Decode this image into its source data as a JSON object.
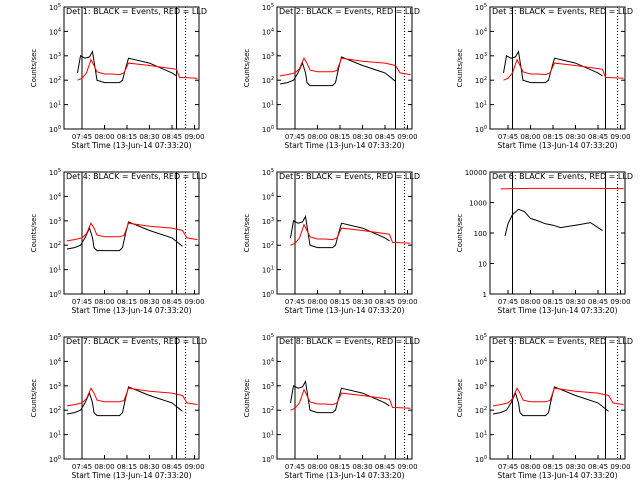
{
  "figure": {
    "x_title_common": "Start Time (13-Jun-14 07:33:20)",
    "y_title_common": "Counts/sec"
  },
  "chart_data": [
    {
      "type": "line",
      "title": "Det 1: BLACK = Events, RED = LLD",
      "xlabel": "Start Time (13-Jun-14 07:33:20)",
      "ylabel": "Counts/sec",
      "yscale": "log",
      "xlim": [
        "07:33",
        "09:03"
      ],
      "ylim": [
        1,
        100000
      ],
      "x_ticks": [
        "07:45",
        "08:00",
        "08:15",
        "08:30",
        "08:45",
        "09:00"
      ],
      "y_ticks": [
        "10^0",
        "10^1",
        "10^2",
        "10^3",
        "10^4",
        "10^5"
      ],
      "vlines_solid": [
        "07:45",
        "08:48"
      ],
      "vlines_dotted": [
        "08:54"
      ],
      "series": [
        {
          "color": "#000000",
          "x": [
            "07:42",
            "07:44",
            "07:47",
            "07:50",
            "07:52",
            "07:53",
            "07:55",
            "08:00",
            "08:05",
            "08:10",
            "08:12",
            "08:14",
            "08:16",
            "08:30",
            "08:45",
            "08:48"
          ],
          "y": [
            200,
            1000,
            800,
            900,
            1500,
            600,
            100,
            80,
            80,
            80,
            100,
            300,
            800,
            500,
            200,
            150
          ]
        },
        {
          "color": "#ff0000",
          "x": [
            "07:42",
            "07:45",
            "07:48",
            "07:51",
            "07:53",
            "07:55",
            "08:00",
            "08:05",
            "08:10",
            "08:13",
            "08:16",
            "08:30",
            "08:45",
            "08:48",
            "08:50",
            "09:02"
          ],
          "y": [
            100,
            120,
            200,
            700,
            400,
            220,
            180,
            180,
            170,
            200,
            500,
            400,
            300,
            280,
            130,
            120
          ]
        }
      ]
    },
    {
      "type": "line",
      "title": "Det 2: BLACK = Events, RED = LLD",
      "xlabel": "Start Time (13-Jun-14 07:33:20)",
      "ylabel": "Counts/sec",
      "yscale": "log",
      "xlim": [
        "07:33",
        "09:03"
      ],
      "ylim": [
        1,
        100000
      ],
      "x_ticks": [
        "07:45",
        "08:00",
        "08:15",
        "08:30",
        "08:45",
        "09:00"
      ],
      "y_ticks": [
        "10^0",
        "10^1",
        "10^2",
        "10^3",
        "10^4",
        "10^5"
      ],
      "vlines_solid": [
        "07:45",
        "08:52"
      ],
      "vlines_dotted": [
        "08:58"
      ],
      "series": [
        {
          "color": "#000000",
          "x": [
            "07:35",
            "07:40",
            "07:44",
            "07:47",
            "07:50",
            "07:52",
            "07:53",
            "07:55",
            "08:00",
            "08:05",
            "08:10",
            "08:12",
            "08:14",
            "08:16",
            "08:30",
            "08:45",
            "08:52"
          ],
          "y": [
            70,
            80,
            100,
            200,
            500,
            200,
            80,
            60,
            60,
            60,
            60,
            80,
            300,
            900,
            400,
            200,
            90
          ]
        },
        {
          "color": "#ff0000",
          "x": [
            "07:35",
            "07:40",
            "07:45",
            "07:48",
            "07:51",
            "07:53",
            "07:55",
            "08:00",
            "08:05",
            "08:10",
            "08:13",
            "08:16",
            "08:30",
            "08:45",
            "08:52",
            "08:55",
            "09:02"
          ],
          "y": [
            150,
            170,
            200,
            300,
            800,
            500,
            260,
            220,
            220,
            220,
            250,
            800,
            600,
            500,
            400,
            200,
            170
          ]
        }
      ]
    },
    {
      "type": "line",
      "title": "Det 3: BLACK = Events, RED = LLD",
      "xlabel": "Start Time (13-Jun-14 07:33:20)",
      "ylabel": "Counts/sec",
      "yscale": "log",
      "xlim": [
        "07:33",
        "09:03"
      ],
      "ylim": [
        1,
        100000
      ],
      "x_ticks": [
        "07:45",
        "08:00",
        "08:15",
        "08:30",
        "08:45",
        "09:00"
      ],
      "y_ticks": [
        "10^0",
        "10^1",
        "10^2",
        "10^3",
        "10^4",
        "10^5"
      ],
      "vlines_solid": [
        "07:48",
        "08:50"
      ],
      "vlines_dotted": [
        "08:58"
      ],
      "series": [
        {
          "color": "#000000",
          "x": [
            "07:42",
            "07:44",
            "07:47",
            "07:50",
            "07:52",
            "07:53",
            "07:55",
            "08:00",
            "08:05",
            "08:10",
            "08:12",
            "08:14",
            "08:16",
            "08:30",
            "08:45",
            "08:48"
          ],
          "y": [
            200,
            1000,
            800,
            900,
            1500,
            600,
            100,
            80,
            80,
            80,
            100,
            300,
            800,
            500,
            200,
            150
          ]
        },
        {
          "color": "#ff0000",
          "x": [
            "07:42",
            "07:45",
            "07:48",
            "07:51",
            "07:53",
            "07:55",
            "08:00",
            "08:05",
            "08:10",
            "08:13",
            "08:16",
            "08:30",
            "08:45",
            "08:48",
            "08:50",
            "09:02"
          ],
          "y": [
            100,
            120,
            200,
            700,
            400,
            220,
            180,
            180,
            170,
            200,
            500,
            400,
            300,
            280,
            130,
            120
          ]
        }
      ]
    },
    {
      "type": "line",
      "title": "Det 4: BLACK = Events, RED = LLD",
      "xlabel": "Start Time (13-Jun-14 07:33:20)",
      "ylabel": "Counts/sec",
      "yscale": "log",
      "xlim": [
        "07:33",
        "09:03"
      ],
      "ylim": [
        1,
        100000
      ],
      "x_ticks": [
        "07:45",
        "08:00",
        "08:15",
        "08:30",
        "08:45",
        "09:00"
      ],
      "y_ticks": [
        "10^0",
        "10^1",
        "10^2",
        "10^3",
        "10^4",
        "10^5"
      ],
      "vlines_solid": [
        "07:45",
        "08:48"
      ],
      "vlines_dotted": [
        "08:54"
      ],
      "series": [
        {
          "color": "#000000",
          "x": [
            "07:35",
            "07:40",
            "07:44",
            "07:47",
            "07:50",
            "07:52",
            "07:53",
            "07:55",
            "08:00",
            "08:05",
            "08:10",
            "08:12",
            "08:14",
            "08:16",
            "08:30",
            "08:45",
            "08:52"
          ],
          "y": [
            70,
            80,
            100,
            200,
            500,
            200,
            80,
            60,
            60,
            60,
            60,
            80,
            300,
            900,
            400,
            200,
            90
          ]
        },
        {
          "color": "#ff0000",
          "x": [
            "07:35",
            "07:40",
            "07:45",
            "07:48",
            "07:51",
            "07:53",
            "07:55",
            "08:00",
            "08:05",
            "08:10",
            "08:13",
            "08:16",
            "08:30",
            "08:45",
            "08:52",
            "08:55",
            "09:02"
          ],
          "y": [
            150,
            170,
            200,
            300,
            800,
            500,
            260,
            220,
            220,
            220,
            250,
            800,
            600,
            500,
            400,
            200,
            170
          ]
        }
      ]
    },
    {
      "type": "line",
      "title": "Det 5: BLACK = Events, RED = LLD",
      "xlabel": "Start Time (13-Jun-14 07:33:20)",
      "ylabel": "Counts/sec",
      "yscale": "log",
      "xlim": [
        "07:33",
        "09:03"
      ],
      "ylim": [
        1,
        100000
      ],
      "x_ticks": [
        "07:45",
        "08:00",
        "08:15",
        "08:30",
        "08:45",
        "09:00"
      ],
      "y_ticks": [
        "10^0",
        "10^1",
        "10^2",
        "10^3",
        "10^4",
        "10^5"
      ],
      "vlines_solid": [
        "07:45",
        "08:52"
      ],
      "vlines_dotted": [
        "08:58"
      ],
      "series": [
        {
          "color": "#000000",
          "x": [
            "07:42",
            "07:44",
            "07:47",
            "07:50",
            "07:52",
            "07:53",
            "07:55",
            "08:00",
            "08:05",
            "08:10",
            "08:12",
            "08:14",
            "08:16",
            "08:30",
            "08:45",
            "08:48"
          ],
          "y": [
            200,
            1000,
            800,
            900,
            1500,
            600,
            100,
            80,
            80,
            80,
            100,
            300,
            800,
            500,
            200,
            150
          ]
        },
        {
          "color": "#ff0000",
          "x": [
            "07:42",
            "07:45",
            "07:48",
            "07:51",
            "07:53",
            "07:55",
            "08:00",
            "08:05",
            "08:10",
            "08:13",
            "08:16",
            "08:30",
            "08:45",
            "08:48",
            "08:50",
            "09:02"
          ],
          "y": [
            100,
            120,
            200,
            700,
            400,
            220,
            180,
            180,
            170,
            200,
            500,
            400,
            300,
            280,
            130,
            120
          ]
        }
      ]
    },
    {
      "type": "line",
      "title": "Det 6: BLACK = Events, RED = LLD",
      "xlabel": "Start Time (13-Jun-14 07:33:20)",
      "ylabel": "Counts/sec",
      "yscale": "log",
      "xlim": [
        "07:33",
        "09:03"
      ],
      "ylim": [
        1,
        10000
      ],
      "x_ticks": [
        "07:45",
        "08:00",
        "08:15",
        "08:30",
        "08:45",
        "09:00"
      ],
      "y_ticks": [
        "1",
        "10",
        "100",
        "1000",
        "10000"
      ],
      "vlines_solid": [
        "07:48",
        "08:50"
      ],
      "vlines_dotted": [
        "08:58"
      ],
      "series": [
        {
          "color": "#000000",
          "x": [
            "07:43",
            "07:45",
            "07:48",
            "07:52",
            "07:56",
            "08:00",
            "08:05",
            "08:10",
            "08:15",
            "08:20",
            "08:30",
            "08:40",
            "08:48"
          ],
          "y": [
            80,
            200,
            400,
            600,
            500,
            300,
            250,
            200,
            180,
            150,
            180,
            220,
            120
          ]
        },
        {
          "color": "#ff0000",
          "x": [
            "07:40",
            "08:00",
            "08:20",
            "08:40",
            "09:02"
          ],
          "y": [
            2800,
            2900,
            2900,
            2900,
            2850
          ]
        }
      ]
    },
    {
      "type": "line",
      "title": "Det 7: BLACK = Events, RED = LLD",
      "xlabel": "Start Time (13-Jun-14 07:33:20)",
      "ylabel": "Counts/sec",
      "yscale": "log",
      "xlim": [
        "07:33",
        "09:03"
      ],
      "ylim": [
        1,
        100000
      ],
      "x_ticks": [
        "07:45",
        "08:00",
        "08:15",
        "08:30",
        "08:45",
        "09:00"
      ],
      "y_ticks": [
        "10^0",
        "10^1",
        "10^2",
        "10^3",
        "10^4",
        "10^5"
      ],
      "vlines_solid": [
        "07:45",
        "08:48"
      ],
      "vlines_dotted": [
        "08:54"
      ],
      "series": [
        {
          "color": "#000000",
          "x": [
            "07:35",
            "07:40",
            "07:44",
            "07:47",
            "07:50",
            "07:52",
            "07:53",
            "07:55",
            "08:00",
            "08:05",
            "08:10",
            "08:12",
            "08:14",
            "08:16",
            "08:30",
            "08:45",
            "08:52"
          ],
          "y": [
            70,
            80,
            100,
            200,
            500,
            200,
            80,
            60,
            60,
            60,
            60,
            80,
            300,
            900,
            400,
            200,
            90
          ]
        },
        {
          "color": "#ff0000",
          "x": [
            "07:35",
            "07:40",
            "07:45",
            "07:48",
            "07:51",
            "07:53",
            "07:55",
            "08:00",
            "08:05",
            "08:10",
            "08:13",
            "08:16",
            "08:30",
            "08:45",
            "08:52",
            "08:55",
            "09:02"
          ],
          "y": [
            150,
            170,
            200,
            300,
            800,
            500,
            260,
            220,
            220,
            220,
            250,
            800,
            600,
            500,
            400,
            200,
            170
          ]
        }
      ]
    },
    {
      "type": "line",
      "title": "Det 8: BLACK = Events, RED = LLD",
      "xlabel": "Start Time (13-Jun-14 07:33:20)",
      "ylabel": "Counts/sec",
      "yscale": "log",
      "xlim": [
        "07:33",
        "09:03"
      ],
      "ylim": [
        1,
        100000
      ],
      "x_ticks": [
        "07:45",
        "08:00",
        "08:15",
        "08:30",
        "08:45",
        "09:00"
      ],
      "y_ticks": [
        "10^0",
        "10^1",
        "10^2",
        "10^3",
        "10^4",
        "10^5"
      ],
      "vlines_solid": [
        "07:45",
        "08:52"
      ],
      "vlines_dotted": [
        "08:58"
      ],
      "series": [
        {
          "color": "#000000",
          "x": [
            "07:42",
            "07:44",
            "07:47",
            "07:50",
            "07:52",
            "07:53",
            "07:55",
            "08:00",
            "08:05",
            "08:10",
            "08:12",
            "08:14",
            "08:16",
            "08:30",
            "08:45",
            "08:48"
          ],
          "y": [
            200,
            1000,
            800,
            900,
            1500,
            600,
            100,
            80,
            80,
            80,
            100,
            300,
            800,
            500,
            200,
            150
          ]
        },
        {
          "color": "#ff0000",
          "x": [
            "07:42",
            "07:45",
            "07:48",
            "07:51",
            "07:53",
            "07:55",
            "08:00",
            "08:05",
            "08:10",
            "08:13",
            "08:16",
            "08:30",
            "08:45",
            "08:48",
            "08:50",
            "09:02"
          ],
          "y": [
            100,
            120,
            200,
            700,
            400,
            220,
            180,
            180,
            170,
            200,
            500,
            400,
            300,
            280,
            130,
            120
          ]
        }
      ]
    },
    {
      "type": "line",
      "title": "Det 9: BLACK = Events, RED = LLD",
      "xlabel": "Start Time (13-Jun-14 07:33:20)",
      "ylabel": "Counts/sec",
      "yscale": "log",
      "xlim": [
        "07:33",
        "09:03"
      ],
      "ylim": [
        1,
        100000
      ],
      "x_ticks": [
        "07:45",
        "08:00",
        "08:15",
        "08:30",
        "08:45",
        "09:00"
      ],
      "y_ticks": [
        "10^0",
        "10^1",
        "10^2",
        "10^3",
        "10^4",
        "10^5"
      ],
      "vlines_solid": [
        "07:48",
        "08:50"
      ],
      "vlines_dotted": [
        "08:58"
      ],
      "series": [
        {
          "color": "#000000",
          "x": [
            "07:35",
            "07:40",
            "07:44",
            "07:47",
            "07:50",
            "07:52",
            "07:53",
            "07:55",
            "08:00",
            "08:05",
            "08:10",
            "08:12",
            "08:14",
            "08:16",
            "08:30",
            "08:45",
            "08:52"
          ],
          "y": [
            70,
            80,
            100,
            200,
            500,
            200,
            80,
            60,
            60,
            60,
            60,
            80,
            300,
            900,
            400,
            200,
            90
          ]
        },
        {
          "color": "#ff0000",
          "x": [
            "07:35",
            "07:40",
            "07:45",
            "07:48",
            "07:51",
            "07:53",
            "07:55",
            "08:00",
            "08:05",
            "08:10",
            "08:13",
            "08:16",
            "08:30",
            "08:45",
            "08:52",
            "08:55",
            "09:02"
          ],
          "y": [
            150,
            170,
            200,
            300,
            800,
            500,
            260,
            220,
            220,
            220,
            250,
            800,
            600,
            500,
            400,
            200,
            170
          ]
        }
      ]
    }
  ]
}
